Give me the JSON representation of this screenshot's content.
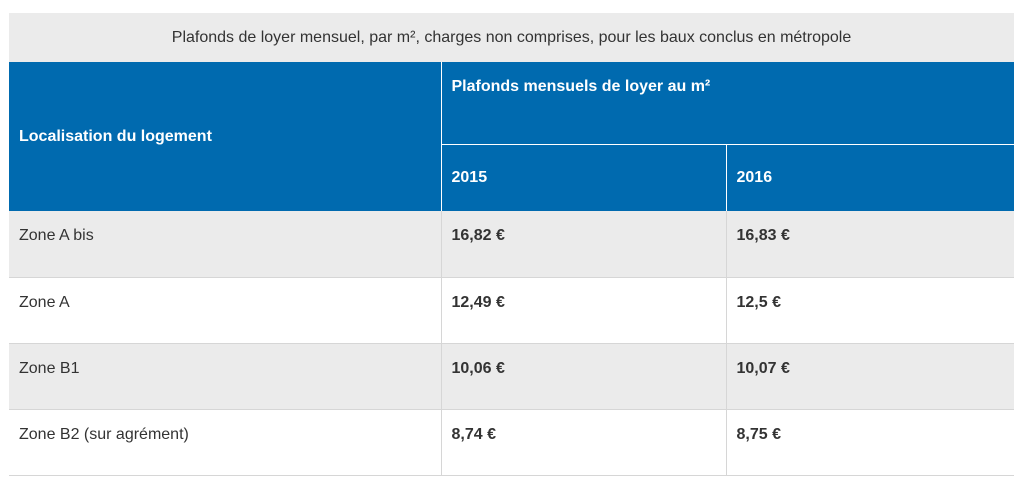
{
  "caption": "Plafonds de loyer mensuel, par m², charges non comprises, pour les baux conclus en métropole",
  "header": {
    "location": "Localisation du logement",
    "group": "Plafonds mensuels de loyer au m²",
    "years": [
      "2015",
      "2016"
    ]
  },
  "rows": [
    {
      "zone": "Zone A bis",
      "y2015": "16,82 €",
      "y2016": "16,83 €"
    },
    {
      "zone": "Zone A",
      "y2015": "12,49 €",
      "y2016": "12,5 €"
    },
    {
      "zone": "Zone B1",
      "y2015": "10,06 €",
      "y2016": "10,07 €"
    },
    {
      "zone": "Zone B2 (sur agrément)",
      "y2015": "8,74 €",
      "y2016": "8,75 €"
    }
  ],
  "colors": {
    "header_bg": "#006aaf",
    "caption_bg": "#ebebeb",
    "row_shade": "#ebebeb"
  }
}
